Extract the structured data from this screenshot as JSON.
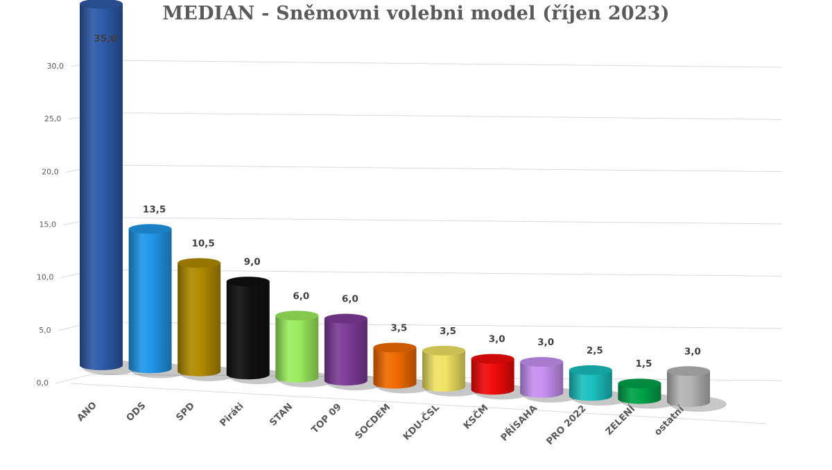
{
  "title": "MEDIAN - Sněmovni volebni model (říjen 2023)",
  "chart_data": {
    "type": "bar",
    "style": "3d-cylinder",
    "title": "MEDIAN - Sněmovni volebni model (říjen 2023)",
    "xlabel": "",
    "ylabel": "",
    "ylim": [
      0,
      30
    ],
    "yticks": [
      "0,0",
      "5,0",
      "10,0",
      "15,0",
      "20,0",
      "25,0",
      "30,0"
    ],
    "grid": true,
    "legend": "none",
    "categories": [
      "ANO",
      "ODS",
      "SPD",
      "Piráti",
      "STAN",
      "TOP 09",
      "SOCDEM",
      "KDU-ČSL",
      "KSČM",
      "PŘÍSAHA",
      "PRO 2022",
      "ZELENÍ",
      "ostatní"
    ],
    "values": [
      35.0,
      13.5,
      10.5,
      9.0,
      6.0,
      6.0,
      3.5,
      3.5,
      3.0,
      3.0,
      2.5,
      1.5,
      3.0
    ],
    "data_labels": [
      "35,0",
      "13,5",
      "10,5",
      "9,0",
      "6,0",
      "6,0",
      "3,5",
      "3,5",
      "3,0",
      "3,0",
      "2,5",
      "1,5",
      "3,0"
    ],
    "colors": [
      "#2E5AA8",
      "#2196E8",
      "#B08A00",
      "#111111",
      "#9BEB5E",
      "#7D3B96",
      "#F06A00",
      "#F0E264",
      "#F00A0A",
      "#C690F2",
      "#1BBFBF",
      "#00A24A",
      "#B4B4B4"
    ]
  }
}
